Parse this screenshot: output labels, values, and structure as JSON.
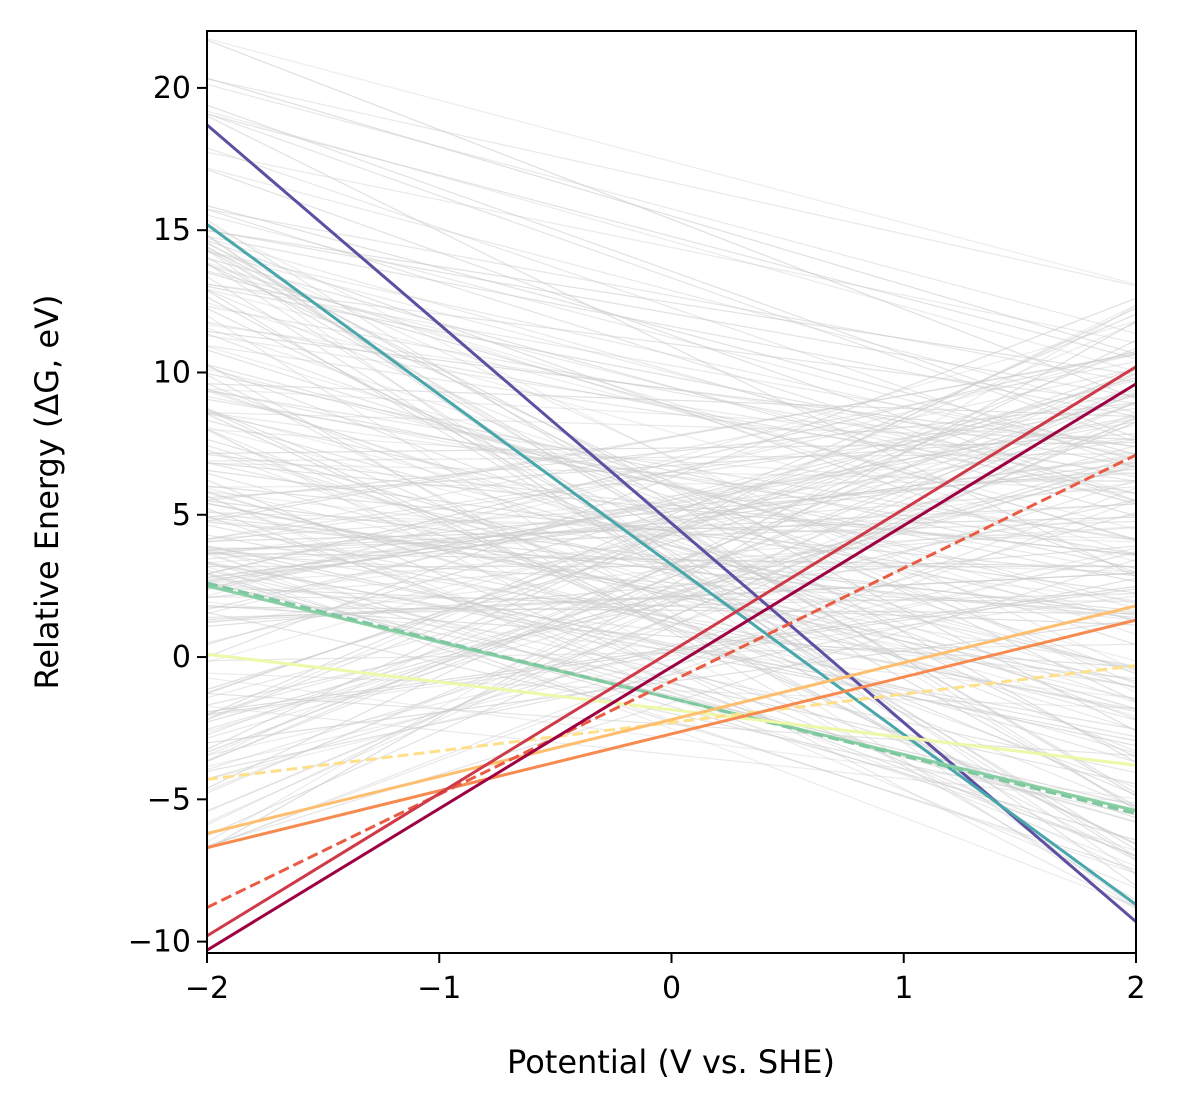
{
  "chart_data": {
    "type": "line",
    "title": "",
    "xlabel": "Potential (V vs. SHE)",
    "ylabel": "Relative Energy (ΔG, eV)",
    "xlim": [
      -2,
      2
    ],
    "ylim": [
      -10.4,
      22
    ],
    "xticks": [
      -2,
      -1,
      0,
      1,
      2
    ],
    "xtick_labels": [
      "−2",
      "−1",
      "0",
      "1",
      "2"
    ],
    "yticks": [
      -10,
      -5,
      0,
      5,
      10,
      15,
      20
    ],
    "ytick_labels": [
      "−10",
      "−5",
      "0",
      "5",
      "10",
      "15",
      "20"
    ],
    "grid": false,
    "legend": "none",
    "background_line_color": "#cccccc",
    "background_lines_count": 240,
    "series": [
      {
        "x": [
          -2,
          2
        ],
        "y": [
          18.7,
          -9.3
        ],
        "color": "#5e4fa2",
        "dash": "solid"
      },
      {
        "x": [
          -2,
          2
        ],
        "y": [
          15.2,
          -8.7
        ],
        "color": "#49a7ab",
        "dash": "solid"
      },
      {
        "x": [
          -2,
          2
        ],
        "y": [
          2.5,
          -5.4
        ],
        "color": "#88cfa4",
        "dash": "solid"
      },
      {
        "x": [
          -2,
          2
        ],
        "y": [
          2.6,
          -5.5
        ],
        "color": "#7fc7a0",
        "dash": "dashed"
      },
      {
        "x": [
          -2,
          2
        ],
        "y": [
          0.1,
          -3.8
        ],
        "color": "#eef8a8",
        "dash": "solid"
      },
      {
        "x": [
          -2,
          2
        ],
        "y": [
          -4.3,
          -0.3
        ],
        "color": "#fee08b",
        "dash": "dashed"
      },
      {
        "x": [
          -2,
          2
        ],
        "y": [
          -6.2,
          1.8
        ],
        "color": "#fdbf6f",
        "dash": "solid"
      },
      {
        "x": [
          -2,
          2
        ],
        "y": [
          -6.7,
          1.3
        ],
        "color": "#f78a4f",
        "dash": "solid"
      },
      {
        "x": [
          -2,
          2
        ],
        "y": [
          -8.8,
          7.1
        ],
        "color": "#e95b43",
        "dash": "dashed"
      },
      {
        "x": [
          -2,
          2
        ],
        "y": [
          -9.8,
          10.2
        ],
        "color": "#cf3a4a",
        "dash": "solid"
      },
      {
        "x": [
          -2,
          2
        ],
        "y": [
          -10.3,
          9.6
        ],
        "color": "#9e0142",
        "dash": "solid"
      }
    ]
  }
}
